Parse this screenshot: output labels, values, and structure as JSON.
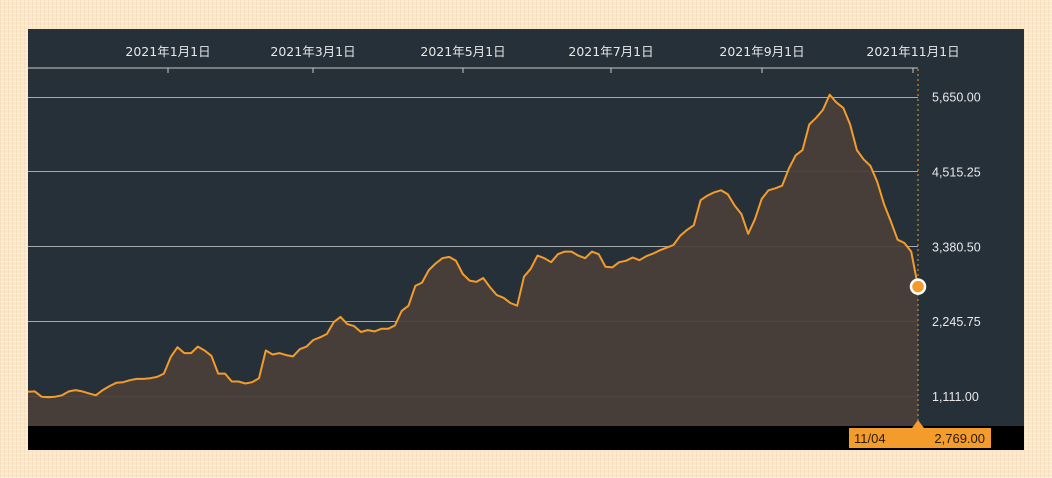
{
  "chart_data": {
    "type": "area",
    "title": "",
    "xlabel": "",
    "ylabel": "",
    "x_ticks": [
      "2021年1月1日",
      "2021年3月1日",
      "2021年5月1日",
      "2021年7月1日",
      "2021年9月1日",
      "2021年11月1日"
    ],
    "y_ticks": [
      1111.0,
      2245.75,
      3380.5,
      4515.25,
      5650.0
    ],
    "y_tick_labels": [
      "1,111.00",
      "2,245.75",
      "3,380.50",
      "4,515.25",
      "5,650.00"
    ],
    "ylim": [
      655,
      6100
    ],
    "grid": true,
    "y_axis_side": "right",
    "series": [
      {
        "values": [
          1175,
          1180,
          1100,
          1090,
          1100,
          1120,
          1180,
          1200,
          1180,
          1150,
          1120,
          1200,
          1260,
          1310,
          1320,
          1350,
          1370,
          1370,
          1380,
          1400,
          1450,
          1700,
          1850,
          1760,
          1760,
          1860,
          1800,
          1720,
          1450,
          1450,
          1330,
          1330,
          1300,
          1320,
          1380,
          1800,
          1740,
          1760,
          1730,
          1710,
          1820,
          1860,
          1960,
          2000,
          2050,
          2230,
          2310,
          2200,
          2170,
          2080,
          2110,
          2090,
          2130,
          2130,
          2180,
          2400,
          2480,
          2780,
          2830,
          3020,
          3120,
          3200,
          3220,
          3160,
          2960,
          2860,
          2840,
          2900,
          2760,
          2640,
          2600,
          2520,
          2480,
          2920,
          3040,
          3240,
          3200,
          3140,
          3260,
          3300,
          3300,
          3240,
          3200,
          3300,
          3260,
          3070,
          3060,
          3140,
          3160,
          3210,
          3170,
          3230,
          3270,
          3320,
          3360,
          3400,
          3540,
          3630,
          3700,
          4080,
          4150,
          4200,
          4230,
          4170,
          4000,
          3870,
          3570,
          3790,
          4100,
          4230,
          4260,
          4300,
          4560,
          4760,
          4840,
          5230,
          5330,
          5450,
          5680,
          5560,
          5480,
          5230,
          4840,
          4700,
          4600,
          4360,
          4020,
          3760,
          3480,
          3430,
          3300,
          2769
        ],
        "color": "#f39c2c"
      }
    ],
    "last_point": {
      "date": "11/04",
      "value": "2,769.00"
    }
  },
  "colors": {
    "background": "#253039",
    "line": "#f39c2c",
    "area": "#4a3f3a",
    "grid": "#c8c8c8",
    "footer": "#000000",
    "label_badge": "#f39c2c"
  }
}
